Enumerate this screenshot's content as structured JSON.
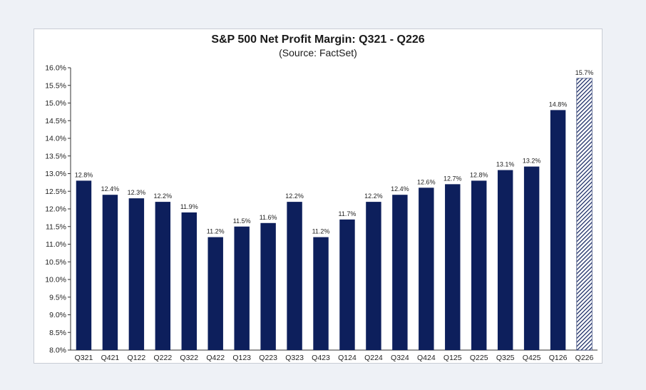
{
  "chart_data": {
    "type": "bar",
    "title": "S&P 500 Net Profit Margin: Q321 - Q226",
    "subtitle": "(Source: FactSet)",
    "xlabel": "",
    "ylabel": "",
    "ylim": [
      8.0,
      16.0
    ],
    "yticks": [
      "8.0%",
      "8.5%",
      "9.0%",
      "9.5%",
      "10.0%",
      "10.5%",
      "11.0%",
      "11.5%",
      "12.0%",
      "12.5%",
      "13.0%",
      "13.5%",
      "14.0%",
      "14.5%",
      "15.0%",
      "15.5%",
      "16.0%"
    ],
    "grid": false,
    "categories": [
      "Q321",
      "Q421",
      "Q122",
      "Q222",
      "Q322",
      "Q422",
      "Q123",
      "Q223",
      "Q323",
      "Q423",
      "Q124",
      "Q224",
      "Q324",
      "Q424",
      "Q125",
      "Q225",
      "Q325",
      "Q425",
      "Q126",
      "Q226"
    ],
    "values": [
      12.8,
      12.4,
      12.3,
      12.2,
      11.9,
      11.2,
      11.5,
      11.6,
      12.2,
      11.2,
      11.7,
      12.2,
      12.4,
      12.6,
      12.7,
      12.8,
      13.1,
      13.2,
      14.8,
      15.7
    ],
    "labels": [
      "12.8%",
      "12.4%",
      "12.3%",
      "12.2%",
      "11.9%",
      "11.2%",
      "11.5%",
      "11.6%",
      "12.2%",
      "11.2%",
      "11.7%",
      "12.2%",
      "12.4%",
      "12.6%",
      "12.7%",
      "12.8%",
      "13.1%",
      "13.2%",
      "14.8%",
      "15.7%"
    ],
    "estimate_flags": [
      false,
      false,
      false,
      false,
      false,
      false,
      false,
      false,
      false,
      false,
      false,
      false,
      false,
      false,
      false,
      false,
      false,
      false,
      false,
      true
    ]
  },
  "colors": {
    "bar": "#0d1f5c",
    "estimate_bar": "#5b6f9e",
    "axis": "#333333"
  }
}
